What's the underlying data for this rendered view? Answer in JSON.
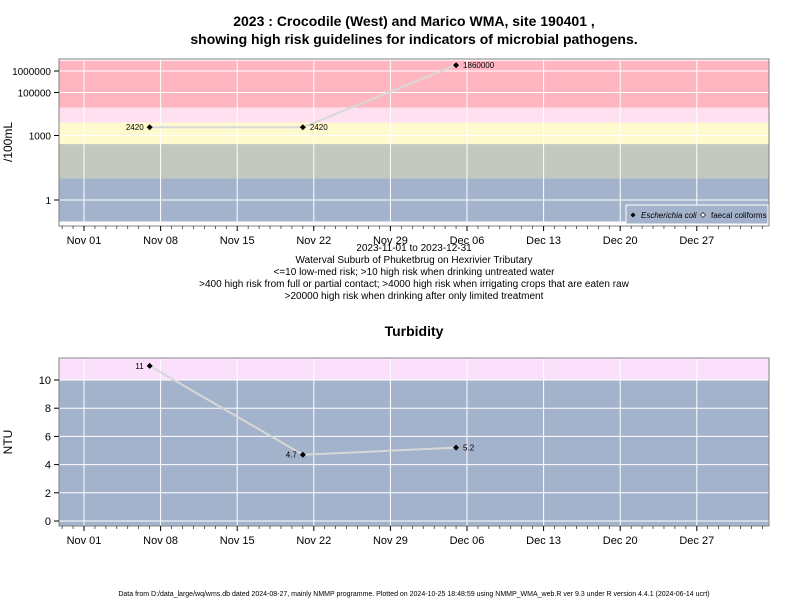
{
  "colors": {
    "band_pink": "#ffb6c1",
    "band_lightpink": "#ffe0f0",
    "band_yellow": "#fffacd",
    "band_green": "#c3c9bf",
    "band_blue": "#a4b3cc",
    "band_turb_pink": "#fbe0fb",
    "line": "#d8d8d8",
    "grid": "#ffffff"
  },
  "chart_data": [
    {
      "type": "line",
      "title_line1": "2023 : Crocodile (West) and Marico WMA, site 190401 ,",
      "title_line2": "showing high risk guidelines for indicators of microbial pathogens.",
      "ylabel": "/100mL",
      "yscale": "log",
      "ylim": [
        0.1,
        3000000
      ],
      "x_ticks": [
        "Nov 01",
        "Nov 08",
        "Nov 15",
        "Nov 22",
        "Nov 29",
        "Dec 06",
        "Dec 13",
        "Dec 20",
        "Dec 27"
      ],
      "y_ticks": [
        "1",
        "1000",
        "100000",
        "1000000"
      ],
      "y_tick_values": [
        1,
        1000,
        100000,
        1000000
      ],
      "bands": [
        {
          "from": 0.1,
          "to": 10,
          "color": "#a4b3cc"
        },
        {
          "from": 10,
          "to": 400,
          "color": "#c3c9bf"
        },
        {
          "from": 400,
          "to": 4000,
          "color": "#fffacd"
        },
        {
          "from": 4000,
          "to": 20000,
          "color": "#ffe0f0"
        },
        {
          "from": 20000,
          "to": 3000000,
          "color": "#ffb6c1"
        }
      ],
      "series": [
        {
          "name": "Escherichia coli",
          "x": [
            "2023-11-07",
            "2023-11-21",
            "2023-12-05"
          ],
          "values": [
            2420,
            2420,
            1860000
          ],
          "labels": [
            "2420",
            "2420",
            "1860000"
          ]
        }
      ],
      "legend": {
        "position": "bottom-right",
        "entries": [
          "Escherichia coli",
          "faecal coliforms"
        ]
      },
      "notes": [
        "2023-11-01 to 2023-12-31",
        "Waterval Suburb of Phuketbrug on Hexrivier Tributary",
        "<=10 low-med risk; >10 high risk when drinking untreated water",
        ">400 high risk from full or partial contact; >4000 high risk when irrigating crops that are eaten raw",
        ">20000 high risk when drinking after only limited treatment"
      ]
    },
    {
      "type": "line",
      "title": "Turbidity",
      "ylabel": "NTU",
      "ylim": [
        -0.4,
        11.5
      ],
      "x_ticks": [
        "Nov 01",
        "Nov 08",
        "Nov 15",
        "Nov 22",
        "Nov 29",
        "Dec 06",
        "Dec 13",
        "Dec 20",
        "Dec 27"
      ],
      "y_ticks": [
        "0",
        "2",
        "4",
        "6",
        "8",
        "10"
      ],
      "y_tick_values": [
        0,
        2,
        4,
        6,
        8,
        10
      ],
      "bands": [
        {
          "from": -0.4,
          "to": 10,
          "color": "#a4b3cc"
        },
        {
          "from": 10,
          "to": 11.5,
          "color": "#fbe0fb"
        }
      ],
      "series": [
        {
          "x": [
            "2023-11-07",
            "2023-11-21",
            "2023-12-05"
          ],
          "values": [
            11,
            4.7,
            5.2
          ],
          "labels": [
            "11",
            "4.7",
            "5.2"
          ]
        }
      ]
    }
  ],
  "footer": "Data from D:/data_large/wq/wms.db dated 2024-08-27, mainly NMMP programme. Plotted on 2024-10-25 18:48:59 using NMMP_WMA_web.R ver 9.3 under R version 4.4.1 (2024-06-14 ucrt)"
}
